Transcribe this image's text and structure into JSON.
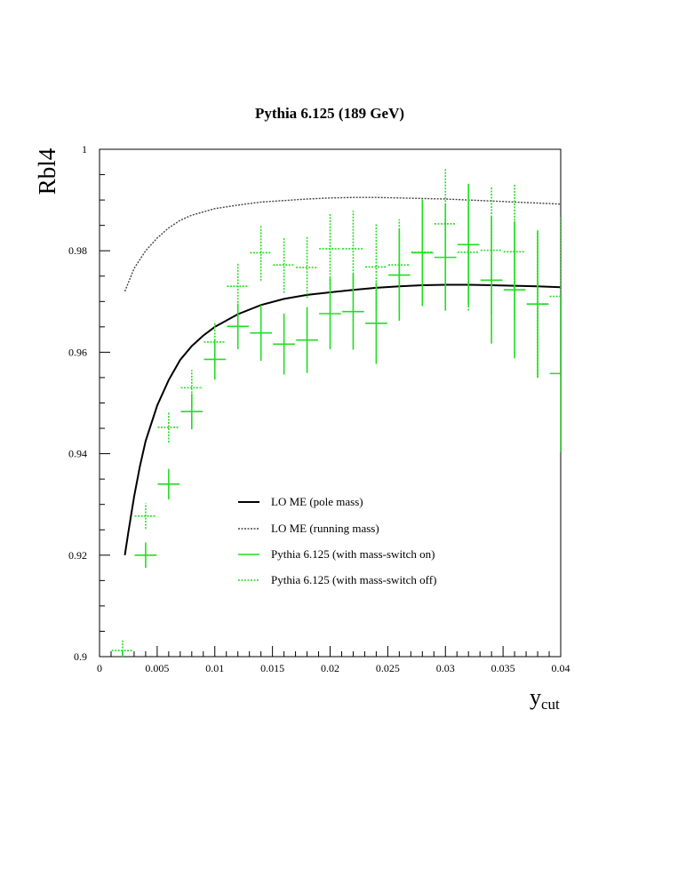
{
  "chart_data": {
    "type": "line",
    "title": "Pythia 6.125 (189 GeV)",
    "ylabel": "Rbl4",
    "xlabel": {
      "base": "y",
      "sub": "cut"
    },
    "xlim": [
      0,
      0.04
    ],
    "ylim": [
      0.9,
      1.0
    ],
    "x_ticks": [
      {
        "v": 0,
        "label": "0"
      },
      {
        "v": 0.005,
        "label": "0.005"
      },
      {
        "v": 0.01,
        "label": "0.01"
      },
      {
        "v": 0.015,
        "label": "0.015"
      },
      {
        "v": 0.02,
        "label": "0.02"
      },
      {
        "v": 0.025,
        "label": "0.025"
      },
      {
        "v": 0.03,
        "label": "0.03"
      },
      {
        "v": 0.035,
        "label": "0.035"
      },
      {
        "v": 0.04,
        "label": "0.04"
      }
    ],
    "y_ticks": [
      {
        "v": 0.9,
        "label": "0.9"
      },
      {
        "v": 0.92,
        "label": "0.92"
      },
      {
        "v": 0.94,
        "label": "0.94"
      },
      {
        "v": 0.96,
        "label": "0.96"
      },
      {
        "v": 0.98,
        "label": "0.98"
      },
      {
        "v": 1.0,
        "label": "1"
      }
    ],
    "grid": false,
    "legend_position": "center",
    "series": [
      {
        "name": "LO ME (pole mass)",
        "kind": "curve",
        "color": "#000000",
        "dash": "none",
        "x": [
          0.0022,
          0.0025,
          0.003,
          0.0035,
          0.004,
          0.005,
          0.006,
          0.007,
          0.008,
          0.009,
          0.01,
          0.012,
          0.014,
          0.016,
          0.018,
          0.02,
          0.022,
          0.024,
          0.026,
          0.028,
          0.03,
          0.032,
          0.034,
          0.036,
          0.038,
          0.04
        ],
        "y": [
          0.92,
          0.9245,
          0.9315,
          0.9375,
          0.9425,
          0.9495,
          0.9545,
          0.9585,
          0.9612,
          0.9633,
          0.965,
          0.9675,
          0.9693,
          0.9705,
          0.9713,
          0.9718,
          0.9723,
          0.9727,
          0.973,
          0.9732,
          0.9733,
          0.9733,
          0.9732,
          0.9731,
          0.973,
          0.9728
        ]
      },
      {
        "name": "LO ME (running mass)",
        "kind": "curve",
        "color": "#444444",
        "dash": "2 1.5",
        "x": [
          0.0022,
          0.003,
          0.004,
          0.005,
          0.006,
          0.007,
          0.008,
          0.01,
          0.012,
          0.014,
          0.016,
          0.018,
          0.02,
          0.022,
          0.024,
          0.026,
          0.028,
          0.03,
          0.032,
          0.034,
          0.036,
          0.038,
          0.04
        ],
        "y": [
          0.972,
          0.9765,
          0.98,
          0.9825,
          0.9845,
          0.986,
          0.987,
          0.9883,
          0.989,
          0.9896,
          0.9899,
          0.9902,
          0.9904,
          0.9905,
          0.9905,
          0.9904,
          0.9903,
          0.9902,
          0.99,
          0.9898,
          0.9896,
          0.9894,
          0.9892
        ]
      },
      {
        "name": "Pythia 6.125 (with mass-switch on)",
        "kind": "points",
        "color": "#22dd22",
        "dash": "none",
        "x": [
          0.002,
          0.004,
          0.006,
          0.008,
          0.01,
          0.012,
          0.014,
          0.016,
          0.018,
          0.02,
          0.022,
          0.024,
          0.026,
          0.028,
          0.03,
          0.032,
          0.034,
          0.036,
          0.038,
          0.04
        ],
        "y": [
          0.898,
          0.92,
          0.934,
          0.9483,
          0.9586,
          0.9651,
          0.9638,
          0.9616,
          0.9624,
          0.9676,
          0.968,
          0.9657,
          0.9752,
          0.9796,
          0.9787,
          0.9812,
          0.9742,
          0.9723,
          0.9695,
          0.9558
        ],
        "yerr": [
          0.003,
          0.0025,
          0.003,
          0.0035,
          0.004,
          0.0045,
          0.0055,
          0.006,
          0.0065,
          0.007,
          0.0075,
          0.008,
          0.009,
          0.0105,
          0.0105,
          0.012,
          0.0125,
          0.0135,
          0.0145,
          0.0155
        ]
      },
      {
        "name": "Pythia 6.125 (with mass-switch off)",
        "kind": "points",
        "color": "#22dd22",
        "dash": "2 1.5",
        "x": [
          0.002,
          0.004,
          0.006,
          0.008,
          0.01,
          0.012,
          0.014,
          0.016,
          0.018,
          0.02,
          0.022,
          0.024,
          0.026,
          0.028,
          0.03,
          0.032,
          0.034,
          0.036,
          0.038,
          0.04
        ],
        "y": [
          0.9012,
          0.9277,
          0.9452,
          0.953,
          0.962,
          0.973,
          0.9796,
          0.9772,
          0.9767,
          0.9804,
          0.9804,
          0.9768,
          0.9772,
          0.9797,
          0.9853,
          0.9797,
          0.9801,
          0.9798,
          0.9695,
          0.971
        ],
        "yerr": [
          0.002,
          0.0025,
          0.003,
          0.0035,
          0.004,
          0.0045,
          0.0055,
          0.0055,
          0.006,
          0.007,
          0.0075,
          0.0085,
          0.009,
          0.0095,
          0.011,
          0.0115,
          0.0125,
          0.0135,
          0.0145,
          0.0155
        ]
      }
    ]
  }
}
